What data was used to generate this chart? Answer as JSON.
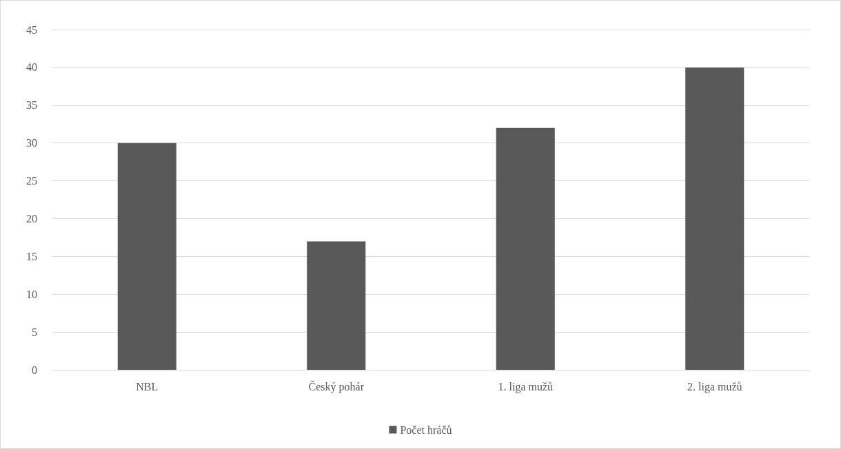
{
  "chart_data": {
    "type": "bar",
    "categories": [
      "NBL",
      "Český pohár",
      "1. liga mužů",
      "2. liga mužů"
    ],
    "series": [
      {
        "name": "Počet hráčů",
        "color": "#595959",
        "values": [
          30,
          17,
          32,
          40
        ]
      }
    ],
    "ylim": [
      0,
      45
    ],
    "yticks": [
      0,
      5,
      10,
      15,
      20,
      25,
      30,
      35,
      40,
      45
    ],
    "grid": "y",
    "legend": "bottom"
  }
}
